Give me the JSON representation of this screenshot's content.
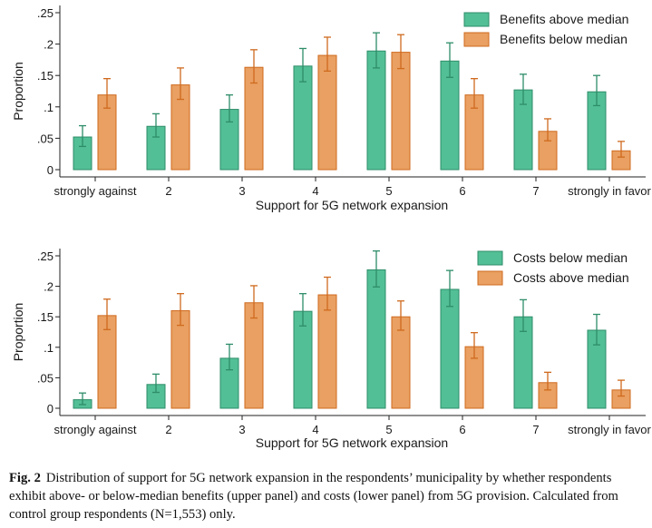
{
  "colors": {
    "green_fill": "#53bf96",
    "green_edge": "#2e8d69",
    "orange_fill": "#e9a062",
    "orange_edge": "#cf6a1e"
  },
  "chart_data": [
    {
      "type": "bar",
      "panel": "upper",
      "xlabel": "Support for 5G network expansion",
      "ylabel": "Proportion",
      "ylim": [
        0,
        0.25
      ],
      "yticks": [
        0,
        0.05,
        0.1,
        0.15,
        0.2,
        0.25
      ],
      "ytick_labels": [
        "0",
        ".05",
        ".1",
        ".15",
        ".2",
        ".25"
      ],
      "categories": [
        "strongly against",
        "2",
        "3",
        "4",
        "5",
        "6",
        "7",
        "strongly in favor"
      ],
      "legend_position": "top-right",
      "series": [
        {
          "name": "Benefits above median",
          "color_key": "green",
          "values": [
            0.052,
            0.069,
            0.096,
            0.165,
            0.189,
            0.173,
            0.127,
            0.124
          ],
          "ci_low": [
            0.037,
            0.052,
            0.076,
            0.14,
            0.162,
            0.147,
            0.104,
            0.102
          ],
          "ci_high": [
            0.07,
            0.089,
            0.119,
            0.193,
            0.218,
            0.202,
            0.152,
            0.15
          ]
        },
        {
          "name": "Benefits below median",
          "color_key": "orange",
          "values": [
            0.119,
            0.135,
            0.163,
            0.182,
            0.187,
            0.119,
            0.061,
            0.03
          ],
          "ci_low": [
            0.098,
            0.112,
            0.138,
            0.157,
            0.161,
            0.098,
            0.046,
            0.02
          ],
          "ci_high": [
            0.145,
            0.162,
            0.191,
            0.211,
            0.215,
            0.145,
            0.081,
            0.045
          ]
        }
      ]
    },
    {
      "type": "bar",
      "panel": "lower",
      "xlabel": "Support for 5G network expansion",
      "ylabel": "Proportion",
      "ylim": [
        0,
        0.25
      ],
      "yticks": [
        0,
        0.05,
        0.1,
        0.15,
        0.2,
        0.25
      ],
      "ytick_labels": [
        "0",
        ".05",
        ".1",
        ".15",
        ".2",
        ".25"
      ],
      "categories": [
        "strongly against",
        "2",
        "3",
        "4",
        "5",
        "6",
        "7",
        "strongly in favor"
      ],
      "legend_position": "top-right",
      "series": [
        {
          "name": "Costs below median",
          "color_key": "green",
          "values": [
            0.014,
            0.039,
            0.082,
            0.159,
            0.227,
            0.195,
            0.15,
            0.128
          ],
          "ci_low": [
            0.006,
            0.026,
            0.063,
            0.135,
            0.199,
            0.167,
            0.126,
            0.104
          ],
          "ci_high": [
            0.025,
            0.056,
            0.105,
            0.188,
            0.258,
            0.226,
            0.178,
            0.154
          ]
        },
        {
          "name": "Costs above median",
          "color_key": "orange",
          "values": [
            0.152,
            0.16,
            0.173,
            0.186,
            0.15,
            0.101,
            0.042,
            0.03
          ],
          "ci_low": [
            0.129,
            0.136,
            0.148,
            0.161,
            0.128,
            0.082,
            0.03,
            0.02
          ],
          "ci_high": [
            0.179,
            0.188,
            0.201,
            0.215,
            0.176,
            0.124,
            0.059,
            0.046
          ]
        }
      ]
    }
  ],
  "caption": {
    "label": "Fig. 2",
    "text": "Distribution of support for 5G network expansion in the respondents’ municipality by whether respondents exhibit above- or below-median benefits (upper panel) and costs (lower panel) from 5G provision. Calculated from control group respondents (N=1,553) only."
  }
}
